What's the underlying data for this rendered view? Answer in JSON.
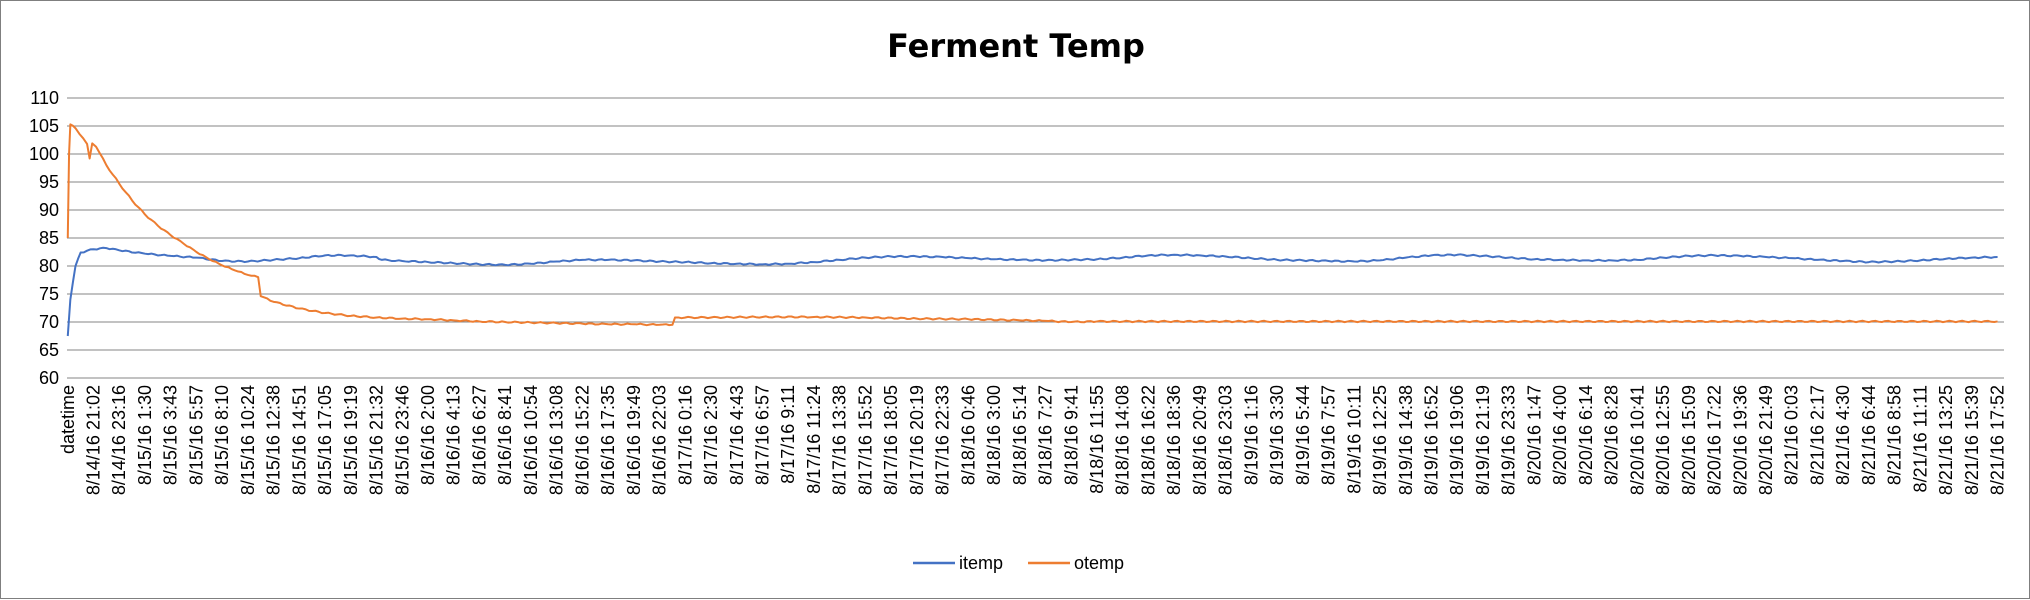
{
  "chart_data": {
    "type": "line",
    "title": "Ferment Temp",
    "xlabel": "",
    "ylabel": "",
    "ylim": [
      60,
      110
    ],
    "y_ticks": [
      60,
      65,
      70,
      75,
      80,
      85,
      90,
      95,
      100,
      105,
      110
    ],
    "grid": "horizontal",
    "legend_position": "bottom",
    "categories": [
      "datetime",
      "8/14/16 21:02",
      "8/14/16 23:16",
      "8/15/16 1:30",
      "8/15/16 3:43",
      "8/15/16 5:57",
      "8/15/16 8:10",
      "8/15/16 10:24",
      "8/15/16 12:38",
      "8/15/16 14:51",
      "8/15/16 17:05",
      "8/15/16 19:19",
      "8/15/16 21:32",
      "8/15/16 23:46",
      "8/16/16 2:00",
      "8/16/16 4:13",
      "8/16/16 6:27",
      "8/16/16 8:41",
      "8/16/16 10:54",
      "8/16/16 13:08",
      "8/16/16 15:22",
      "8/16/16 17:35",
      "8/16/16 19:49",
      "8/16/16 22:03",
      "8/17/16 0:16",
      "8/17/16 2:30",
      "8/17/16 4:43",
      "8/17/16 6:57",
      "8/17/16 9:11",
      "8/17/16 11:24",
      "8/17/16 13:38",
      "8/17/16 15:52",
      "8/17/16 18:05",
      "8/17/16 20:19",
      "8/17/16 22:33",
      "8/18/16 0:46",
      "8/18/16 3:00",
      "8/18/16 5:14",
      "8/18/16 7:27",
      "8/18/16 9:41",
      "8/18/16 11:55",
      "8/18/16 14:08",
      "8/18/16 16:22",
      "8/18/16 18:36",
      "8/18/16 20:49",
      "8/18/16 23:03",
      "8/19/16 1:16",
      "8/19/16 3:30",
      "8/19/16 5:44",
      "8/19/16 7:57",
      "8/19/16 10:11",
      "8/19/16 12:25",
      "8/19/16 14:38",
      "8/19/16 16:52",
      "8/19/16 19:06",
      "8/19/16 21:19",
      "8/19/16 23:33",
      "8/20/16 1:47",
      "8/20/16 4:00",
      "8/20/16 6:14",
      "8/20/16 8:28",
      "8/20/16 10:41",
      "8/20/16 12:55",
      "8/20/16 15:09",
      "8/20/16 17:22",
      "8/20/16 19:36",
      "8/20/16 21:49",
      "8/21/16 0:03",
      "8/21/16 2:17",
      "8/21/16 4:30",
      "8/21/16 6:44",
      "8/21/16 8:58",
      "8/21/16 11:11",
      "8/21/16 13:25",
      "8/21/16 15:39",
      "8/21/16 17:52"
    ],
    "series": [
      {
        "name": "itemp",
        "color": "#4472C4",
        "points": [
          [
            0,
            67.5
          ],
          [
            0.1,
            74
          ],
          [
            0.3,
            80
          ],
          [
            0.5,
            82.4
          ],
          [
            1,
            83.0
          ],
          [
            1.5,
            83.2
          ],
          [
            2,
            82.8
          ],
          [
            3,
            82.2
          ],
          [
            4,
            81.8
          ],
          [
            5,
            81.5
          ],
          [
            6,
            80.9
          ],
          [
            7,
            80.8
          ],
          [
            8,
            81.1
          ],
          [
            9,
            81.4
          ],
          [
            10,
            81.9
          ],
          [
            11,
            81.9
          ],
          [
            12,
            81.6
          ],
          [
            12.2,
            81.1
          ],
          [
            13,
            80.9
          ],
          [
            14,
            80.7
          ],
          [
            15,
            80.5
          ],
          [
            16,
            80.3
          ],
          [
            17,
            80.2
          ],
          [
            18,
            80.4
          ],
          [
            19,
            80.8
          ],
          [
            20,
            81.1
          ],
          [
            21,
            81.1
          ],
          [
            22,
            81.0
          ],
          [
            23,
            80.8
          ],
          [
            24,
            80.7
          ],
          [
            25,
            80.5
          ],
          [
            26,
            80.4
          ],
          [
            27,
            80.3
          ],
          [
            28,
            80.4
          ],
          [
            29,
            80.7
          ],
          [
            30,
            81.1
          ],
          [
            31,
            81.5
          ],
          [
            32,
            81.7
          ],
          [
            33,
            81.7
          ],
          [
            34,
            81.6
          ],
          [
            35,
            81.4
          ],
          [
            36,
            81.2
          ],
          [
            37,
            81.1
          ],
          [
            38,
            81.0
          ],
          [
            39,
            81.1
          ],
          [
            40,
            81.2
          ],
          [
            41,
            81.5
          ],
          [
            42,
            81.9
          ],
          [
            43,
            82.0
          ],
          [
            44,
            81.9
          ],
          [
            45,
            81.7
          ],
          [
            46,
            81.4
          ],
          [
            47,
            81.1
          ],
          [
            48,
            81.0
          ],
          [
            49,
            80.9
          ],
          [
            50,
            80.8
          ],
          [
            51,
            81.0
          ],
          [
            52,
            81.5
          ],
          [
            53,
            81.9
          ],
          [
            54,
            82.0
          ],
          [
            55,
            81.8
          ],
          [
            56,
            81.5
          ],
          [
            57,
            81.2
          ],
          [
            58,
            81.1
          ],
          [
            59,
            81.0
          ],
          [
            60,
            81.0
          ],
          [
            61,
            81.1
          ],
          [
            62,
            81.5
          ],
          [
            63,
            81.8
          ],
          [
            64,
            81.9
          ],
          [
            65,
            81.8
          ],
          [
            66,
            81.6
          ],
          [
            67,
            81.4
          ],
          [
            68,
            81.1
          ],
          [
            69,
            80.9
          ],
          [
            70,
            80.7
          ],
          [
            71,
            80.8
          ],
          [
            72,
            81.0
          ],
          [
            73,
            81.3
          ],
          [
            74,
            81.5
          ],
          [
            75,
            81.6
          ]
        ]
      },
      {
        "name": "otemp",
        "color": "#ED7D31",
        "points": [
          [
            0,
            85
          ],
          [
            0.05,
            100
          ],
          [
            0.1,
            105.3
          ],
          [
            0.3,
            104.6
          ],
          [
            0.6,
            102.8
          ],
          [
            0.75,
            101.8
          ],
          [
            0.85,
            99.2
          ],
          [
            0.95,
            101.9
          ],
          [
            1.1,
            101.3
          ],
          [
            1.5,
            98.0
          ],
          [
            2,
            94.7
          ],
          [
            2.5,
            91.7
          ],
          [
            3,
            89.2
          ],
          [
            3.5,
            87.2
          ],
          [
            4,
            85.5
          ],
          [
            4.5,
            84.0
          ],
          [
            5,
            82.5
          ],
          [
            5.5,
            81.2
          ],
          [
            6,
            80.1
          ],
          [
            6.5,
            79.2
          ],
          [
            7,
            78.4
          ],
          [
            7.4,
            78.0
          ],
          [
            7.5,
            74.6
          ],
          [
            8,
            73.6
          ],
          [
            9,
            72.4
          ],
          [
            10,
            71.6
          ],
          [
            11,
            71.1
          ],
          [
            12,
            70.8
          ],
          [
            13,
            70.6
          ],
          [
            14,
            70.5
          ],
          [
            15,
            70.3
          ],
          [
            16,
            70.1
          ],
          [
            17,
            70.0
          ],
          [
            18,
            69.9
          ],
          [
            19,
            69.8
          ],
          [
            20,
            69.7
          ],
          [
            21,
            69.6
          ],
          [
            22,
            69.6
          ],
          [
            23,
            69.5
          ],
          [
            23.5,
            69.5
          ],
          [
            23.6,
            70.8
          ],
          [
            25,
            70.8
          ],
          [
            27,
            70.9
          ],
          [
            29,
            70.9
          ],
          [
            31,
            70.8
          ],
          [
            33,
            70.6
          ],
          [
            35,
            70.5
          ],
          [
            37,
            70.3
          ],
          [
            38,
            70.2
          ],
          [
            39,
            70.0
          ],
          [
            40,
            70.1
          ],
          [
            75,
            70.1
          ]
        ]
      }
    ]
  }
}
